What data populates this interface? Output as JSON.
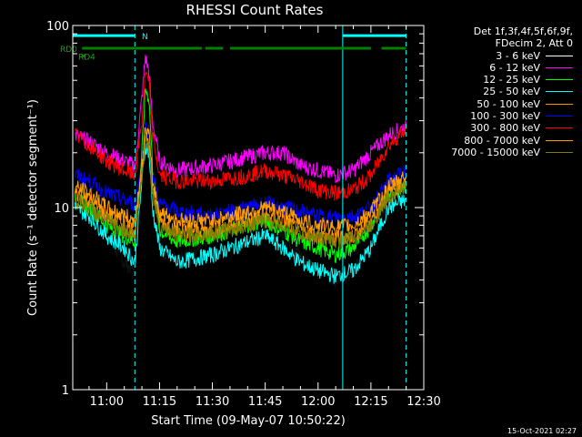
{
  "chart_data": {
    "type": "line",
    "title": "RHESSI Count Rates",
    "xlabel": "Start Time (09-May-07 10:50:22)",
    "ylabel": "Count Rate (s⁻¹ detector segment⁻¹)",
    "ylog": true,
    "xlim": [
      "10:50:22",
      "12:30:00"
    ],
    "ylim": [
      1,
      100
    ],
    "x_ticks": [
      "11:00",
      "11:15",
      "11:30",
      "11:45",
      "12:00",
      "12:15",
      "12:30"
    ],
    "y_ticks": [
      "1",
      "10",
      "100"
    ],
    "legend": {
      "placement": "right, outside plot",
      "header": [
        "Det 1f,3f,4f,5f,6f,9f,",
        "FDecim 2, Att 0"
      ]
    },
    "series": [
      {
        "name": "3 - 6 keV",
        "color": "#000000",
        "x": [
          "10:51",
          "10:55",
          "11:00",
          "11:05",
          "11:08",
          "11:10",
          "11:11",
          "11:12",
          "11:13",
          "11:15",
          "11:20",
          "11:30",
          "11:40",
          "11:45",
          "11:50",
          "11:55",
          "12:00",
          "12:05",
          "12:10",
          "12:15",
          "12:20",
          "12:25"
        ],
        "y": [
          11,
          9,
          7,
          5,
          4.5,
          20,
          50,
          40,
          15,
          6,
          5,
          7,
          8,
          8.5,
          7,
          5.5,
          4.5,
          4,
          4.5,
          6,
          11,
          13
        ]
      },
      {
        "name": "6 - 12 keV",
        "color": "#ff00ff",
        "x": [
          "10:51",
          "10:55",
          "11:00",
          "11:05",
          "11:08",
          "11:10",
          "11:11",
          "11:12",
          "11:13",
          "11:15",
          "11:20",
          "11:30",
          "11:40",
          "11:45",
          "11:50",
          "11:55",
          "12:00",
          "12:05",
          "12:10",
          "12:15",
          "12:20",
          "12:25"
        ],
        "y": [
          25,
          23,
          20,
          18,
          17,
          40,
          68,
          55,
          30,
          18,
          16,
          17,
          19,
          20,
          20,
          17,
          16,
          15,
          16,
          20,
          25,
          28
        ]
      },
      {
        "name": "12 - 25 keV",
        "color": "#00ff00",
        "x": [
          "10:51",
          "10:55",
          "11:00",
          "11:05",
          "11:08",
          "11:10",
          "11:11",
          "11:12",
          "11:13",
          "11:15",
          "11:20",
          "11:30",
          "11:40",
          "11:45",
          "11:50",
          "11:55",
          "12:00",
          "12:05",
          "12:10",
          "12:15",
          "12:20",
          "12:25"
        ],
        "y": [
          11,
          10,
          8,
          7,
          6.5,
          20,
          45,
          40,
          17,
          7.5,
          6.5,
          7,
          8,
          8.5,
          7.5,
          6.5,
          6,
          5.5,
          6,
          8,
          12,
          13
        ]
      },
      {
        "name": "25 - 50 keV",
        "color": "#00ffff",
        "x": [
          "10:51",
          "10:55",
          "11:00",
          "11:05",
          "11:08",
          "11:10",
          "11:11",
          "11:12",
          "11:13",
          "11:15",
          "11:20",
          "11:30",
          "11:40",
          "11:45",
          "11:50",
          "11:55",
          "12:00",
          "12:05",
          "12:10",
          "12:15",
          "12:20",
          "12:25"
        ],
        "y": [
          10,
          9,
          7,
          6,
          5,
          14,
          22,
          20,
          10,
          6,
          5,
          5.5,
          6.5,
          7,
          6,
          5,
          4.5,
          4.2,
          4.5,
          6,
          10,
          11
        ]
      },
      {
        "name": "50 - 100 keV",
        "color": "#ff9000",
        "x": [
          "10:51",
          "10:55",
          "11:00",
          "11:05",
          "11:08",
          "11:10",
          "11:11",
          "11:12",
          "11:13",
          "11:15",
          "11:20",
          "11:30",
          "11:40",
          "11:45",
          "11:50",
          "11:55",
          "12:00",
          "12:05",
          "12:10",
          "12:15",
          "12:20",
          "12:25"
        ],
        "y": [
          12,
          11,
          9,
          8,
          7.5,
          16,
          26,
          24,
          13,
          8.5,
          7.5,
          7.5,
          8.5,
          9,
          8.5,
          7.5,
          7,
          6.8,
          7,
          8.5,
          12,
          14
        ]
      },
      {
        "name": "100 - 300 keV",
        "color": "#0000ff",
        "x": [
          "10:51",
          "10:55",
          "11:00",
          "11:05",
          "11:08",
          "11:10",
          "11:11",
          "11:12",
          "11:13",
          "11:15",
          "11:20",
          "11:30",
          "11:40",
          "11:45",
          "11:50",
          "11:55",
          "12:00",
          "12:05",
          "12:10",
          "12:15",
          "12:20",
          "12:25"
        ],
        "y": [
          15,
          14,
          12,
          11,
          10.5,
          18,
          28,
          26,
          15,
          10.5,
          9.5,
          9,
          10,
          10.5,
          10,
          9.5,
          9,
          8.8,
          9,
          10,
          14,
          16
        ]
      },
      {
        "name": "300 - 800 keV",
        "color": "#ff0000",
        "x": [
          "10:51",
          "10:55",
          "11:00",
          "11:05",
          "11:08",
          "11:10",
          "11:11",
          "11:12",
          "11:13",
          "11:15",
          "11:20",
          "11:30",
          "11:40",
          "11:45",
          "11:50",
          "11:55",
          "12:00",
          "12:05",
          "12:10",
          "12:15",
          "12:20",
          "12:25"
        ],
        "y": [
          25,
          22,
          18,
          16,
          15,
          30,
          55,
          48,
          25,
          15,
          14,
          14,
          15,
          16,
          15,
          14,
          12.5,
          12,
          12.5,
          15,
          22,
          27
        ]
      },
      {
        "name": "800 - 7000 keV",
        "color": "#ffa000",
        "x": [
          "10:51",
          "10:55",
          "11:00",
          "11:05",
          "11:08",
          "11:10",
          "11:11",
          "11:12",
          "11:13",
          "11:15",
          "11:20",
          "11:30",
          "11:40",
          "11:45",
          "11:50",
          "11:55",
          "12:00",
          "12:05",
          "12:10",
          "12:15",
          "12:20",
          "12:25"
        ],
        "y": [
          13,
          12,
          10,
          9,
          8.5,
          17,
          27,
          25,
          14,
          9.5,
          8.5,
          8.5,
          9.5,
          10,
          9.5,
          8.5,
          8,
          7.8,
          8,
          9.5,
          13,
          15
        ]
      },
      {
        "name": "7000 - 15000 keV",
        "color": "#808000",
        "x": [
          "10:51",
          "10:55",
          "11:00",
          "11:05",
          "11:08",
          "11:10",
          "11:11",
          "11:12",
          "11:13",
          "11:15",
          "11:20",
          "11:30",
          "11:40",
          "11:45",
          "11:50",
          "11:55",
          "12:00",
          "12:05",
          "12:10",
          "12:15",
          "12:20",
          "12:25"
        ],
        "y": [
          11,
          10,
          8.5,
          7.5,
          7,
          15,
          24,
          22,
          12,
          8,
          7,
          7.2,
          8,
          8.5,
          8,
          7.2,
          6.8,
          6.5,
          6.8,
          8,
          11.5,
          13
        ]
      }
    ],
    "annotations": [
      {
        "label": "RD0",
        "color": "#008000",
        "spans": [
          [
            "10:53",
            "11:27"
          ],
          [
            "11:28",
            "11:33"
          ],
          [
            "11:35",
            "12:15"
          ],
          [
            "12:18",
            "12:25"
          ]
        ]
      },
      {
        "label": "RD4",
        "color": "#008000",
        "spans": [
          [
            "10:53",
            "10:54"
          ]
        ]
      },
      {
        "label": "N",
        "color": "#00ffff",
        "spans": [
          [
            "10:50",
            "11:08"
          ],
          [
            "12:07",
            "12:25"
          ]
        ]
      }
    ],
    "vlines": [
      {
        "x": "11:08",
        "style": "dashed",
        "color": "#00ffff"
      },
      {
        "x": "12:07",
        "style": "solid",
        "color": "#00ffff"
      },
      {
        "x": "12:25",
        "style": "dashed",
        "color": "#00ffff"
      }
    ],
    "grid": false
  },
  "footer": {
    "timestamp": "15-Oct-2021 02:27"
  }
}
